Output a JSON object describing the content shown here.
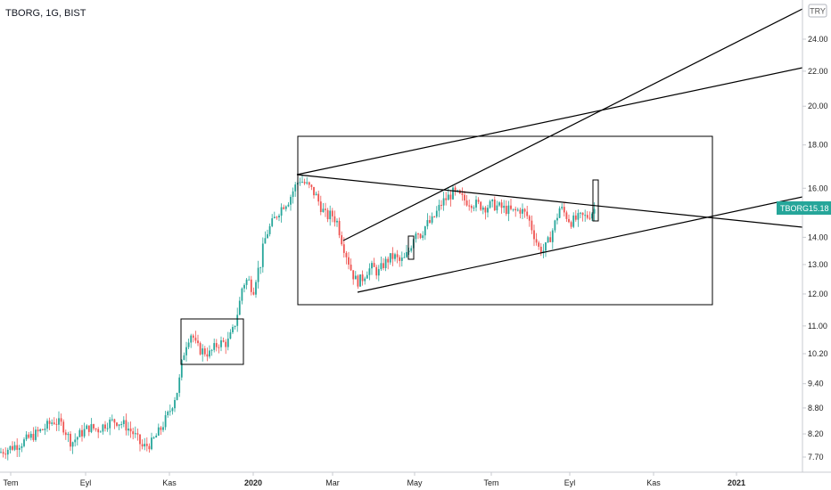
{
  "header": {
    "title": "TBORG, 1G, BIST"
  },
  "currency_button": "TRY",
  "price_badge": {
    "label": "TBORG",
    "value": "15.18",
    "color": "#26a69a"
  },
  "colors": {
    "up": "#26a69a",
    "down": "#ef5350",
    "line": "#000000",
    "axis": "#222222"
  },
  "chart_data": {
    "type": "candlestick",
    "title": "TBORG, 1G, BIST",
    "y_scale": "log",
    "y_ticks": [
      "7.70",
      "8.20",
      "8.80",
      "9.40",
      "10.20",
      "11.00",
      "12.00",
      "13.00",
      "14.00",
      "16.00",
      "18.00",
      "20.00",
      "22.00",
      "24.00"
    ],
    "x_ticks": [
      "Tem",
      "Eyl",
      "Kas",
      "2020",
      "Mar",
      "May",
      "Tem",
      "Eyl",
      "Kas",
      "2021"
    ],
    "last_price": 15.18,
    "price_path": [
      [
        0,
        7.8
      ],
      [
        12,
        7.9
      ],
      [
        24,
        8.0
      ],
      [
        36,
        8.15
      ],
      [
        48,
        8.3
      ],
      [
        60,
        8.5
      ],
      [
        70,
        8.4
      ],
      [
        80,
        8.0
      ],
      [
        90,
        8.2
      ],
      [
        100,
        8.35
      ],
      [
        110,
        8.3
      ],
      [
        120,
        8.45
      ],
      [
        130,
        8.5
      ],
      [
        140,
        8.4
      ],
      [
        150,
        8.2
      ],
      [
        160,
        7.9
      ],
      [
        170,
        8.0
      ],
      [
        180,
        8.3
      ],
      [
        190,
        8.7
      ],
      [
        200,
        9.3
      ],
      [
        205,
        10.1
      ],
      [
        210,
        10.6
      ],
      [
        215,
        10.8
      ],
      [
        220,
        10.4
      ],
      [
        225,
        10.3
      ],
      [
        235,
        10.2
      ],
      [
        245,
        10.5
      ],
      [
        255,
        10.5
      ],
      [
        262,
        10.9
      ],
      [
        268,
        11.6
      ],
      [
        272,
        12.3
      ],
      [
        278,
        12.5
      ],
      [
        284,
        12.1
      ],
      [
        288,
        12.7
      ],
      [
        292,
        13.0
      ],
      [
        296,
        13.8
      ],
      [
        300,
        14.2
      ],
      [
        306,
        14.6
      ],
      [
        312,
        15.0
      ],
      [
        318,
        15.3
      ],
      [
        324,
        15.5
      ],
      [
        330,
        16.0
      ],
      [
        336,
        16.4
      ],
      [
        342,
        16.2
      ],
      [
        348,
        16.0
      ],
      [
        354,
        15.7
      ],
      [
        360,
        15.2
      ],
      [
        366,
        14.8
      ],
      [
        372,
        14.9
      ],
      [
        378,
        14.6
      ],
      [
        384,
        13.8
      ],
      [
        390,
        13.2
      ],
      [
        395,
        12.7
      ],
      [
        400,
        12.4
      ],
      [
        406,
        12.5
      ],
      [
        412,
        12.8
      ],
      [
        418,
        12.9
      ],
      [
        424,
        12.7
      ],
      [
        430,
        13.0
      ],
      [
        436,
        13.2
      ],
      [
        442,
        13.3
      ],
      [
        448,
        13.1
      ],
      [
        454,
        13.2
      ],
      [
        460,
        13.6
      ],
      [
        466,
        14.3
      ],
      [
        472,
        14.1
      ],
      [
        478,
        14.5
      ],
      [
        484,
        14.6
      ],
      [
        490,
        15.0
      ],
      [
        496,
        15.4
      ],
      [
        502,
        15.6
      ],
      [
        508,
        15.8
      ],
      [
        514,
        15.7
      ],
      [
        520,
        15.5
      ],
      [
        528,
        15.4
      ],
      [
        536,
        15.3
      ],
      [
        544,
        15.2
      ],
      [
        552,
        15.3
      ],
      [
        560,
        15.2
      ],
      [
        568,
        15.1
      ],
      [
        576,
        15.0
      ],
      [
        584,
        15.1
      ],
      [
        592,
        14.8
      ],
      [
        598,
        14.2
      ],
      [
        604,
        13.6
      ],
      [
        610,
        13.5
      ],
      [
        616,
        13.9
      ],
      [
        622,
        14.5
      ],
      [
        628,
        15.2
      ],
      [
        634,
        14.9
      ],
      [
        640,
        14.6
      ],
      [
        646,
        14.7
      ],
      [
        652,
        14.8
      ],
      [
        658,
        14.8
      ],
      [
        664,
        15.0
      ],
      [
        668,
        15.18
      ]
    ]
  }
}
